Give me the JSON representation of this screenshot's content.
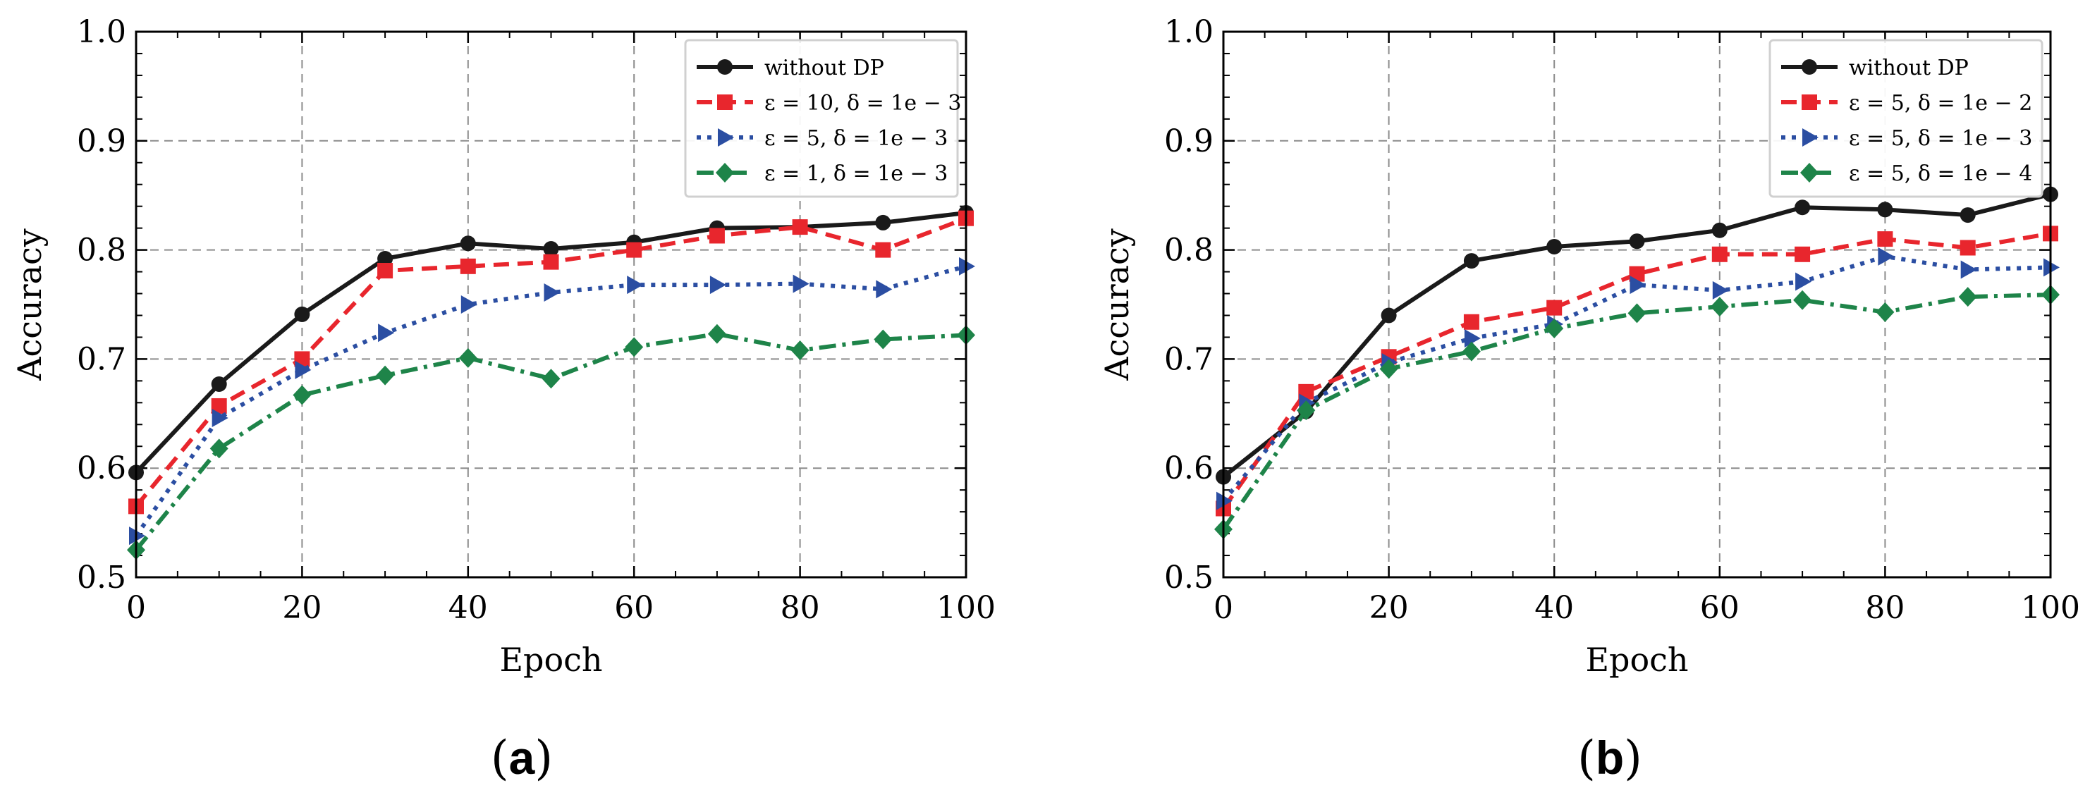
{
  "chart_data": [
    {
      "type": "line",
      "panel": "a",
      "caption": "(a)",
      "caption_parts": [
        "(",
        "a",
        ")"
      ],
      "title": "",
      "xlabel": "Epoch",
      "ylabel": "Accuracy",
      "xlim": [
        0,
        100
      ],
      "ylim": [
        0.5,
        1.0
      ],
      "xticks": [
        0,
        20,
        40,
        60,
        80,
        100
      ],
      "xtick_labels": [
        "0",
        "20",
        "40",
        "60",
        "80",
        "100"
      ],
      "yticks": [
        0.5,
        0.6,
        0.7,
        0.8,
        0.9,
        1.0
      ],
      "ytick_labels": [
        "0.5",
        "0.6",
        "0.7",
        "0.8",
        "0.9",
        "1.0"
      ],
      "grid": true,
      "legend_position": "top-right",
      "x": [
        0,
        10,
        20,
        30,
        40,
        50,
        60,
        70,
        80,
        90,
        100
      ],
      "series": [
        {
          "name": "without DP",
          "color": "#1a1a1a",
          "marker": "circle",
          "linestyle": "solid",
          "values": [
            0.596,
            0.677,
            0.741,
            0.792,
            0.806,
            0.801,
            0.807,
            0.82,
            0.821,
            0.825,
            0.834
          ]
        },
        {
          "name": "ε = 10,  δ = 1e − 3",
          "color": "#e8262d",
          "marker": "square",
          "linestyle": "dashed",
          "values": [
            0.565,
            0.657,
            0.7,
            0.781,
            0.785,
            0.789,
            0.8,
            0.813,
            0.821,
            0.8,
            0.829
          ]
        },
        {
          "name": "ε = 5,  δ = 1e − 3",
          "color": "#2b4ea2",
          "marker": "triangle-right",
          "linestyle": "dotted",
          "values": [
            0.538,
            0.646,
            0.69,
            0.724,
            0.75,
            0.761,
            0.768,
            0.768,
            0.769,
            0.764,
            0.785
          ]
        },
        {
          "name": "ε = 1,  δ = 1e − 3",
          "color": "#1e8449",
          "marker": "diamond",
          "linestyle": "dashdot",
          "values": [
            0.525,
            0.618,
            0.667,
            0.685,
            0.701,
            0.682,
            0.711,
            0.723,
            0.708,
            0.718,
            0.722
          ]
        }
      ]
    },
    {
      "type": "line",
      "panel": "b",
      "caption": "(b)",
      "caption_parts": [
        "(",
        "b",
        ")"
      ],
      "title": "",
      "xlabel": "Epoch",
      "ylabel": "Accuracy",
      "xlim": [
        0,
        100
      ],
      "ylim": [
        0.5,
        1.0
      ],
      "xticks": [
        0,
        20,
        40,
        60,
        80,
        100
      ],
      "xtick_labels": [
        "0",
        "20",
        "40",
        "60",
        "80",
        "100"
      ],
      "yticks": [
        0.5,
        0.6,
        0.7,
        0.8,
        0.9,
        1.0
      ],
      "ytick_labels": [
        "0.5",
        "0.6",
        "0.7",
        "0.8",
        "0.9",
        "1.0"
      ],
      "grid": true,
      "legend_position": "top-right",
      "x": [
        0,
        10,
        20,
        30,
        40,
        50,
        60,
        70,
        80,
        90,
        100
      ],
      "series": [
        {
          "name": "without DP",
          "color": "#1a1a1a",
          "marker": "circle",
          "linestyle": "solid",
          "values": [
            0.592,
            0.652,
            0.74,
            0.79,
            0.803,
            0.808,
            0.818,
            0.839,
            0.837,
            0.832,
            0.851
          ]
        },
        {
          "name": "ε = 5,  δ = 1e − 2",
          "color": "#e8262d",
          "marker": "square",
          "linestyle": "dashed",
          "values": [
            0.563,
            0.67,
            0.702,
            0.734,
            0.747,
            0.778,
            0.796,
            0.796,
            0.81,
            0.802,
            0.815
          ]
        },
        {
          "name": "ε = 5,  δ = 1e − 3",
          "color": "#2b4ea2",
          "marker": "triangle-right",
          "linestyle": "dotted",
          "values": [
            0.57,
            0.66,
            0.697,
            0.719,
            0.732,
            0.768,
            0.763,
            0.771,
            0.794,
            0.782,
            0.784
          ]
        },
        {
          "name": "ε = 5,  δ = 1e − 4",
          "color": "#1e8449",
          "marker": "diamond",
          "linestyle": "dashdot",
          "values": [
            0.544,
            0.653,
            0.691,
            0.707,
            0.728,
            0.742,
            0.748,
            0.754,
            0.743,
            0.757,
            0.759
          ]
        }
      ]
    }
  ]
}
